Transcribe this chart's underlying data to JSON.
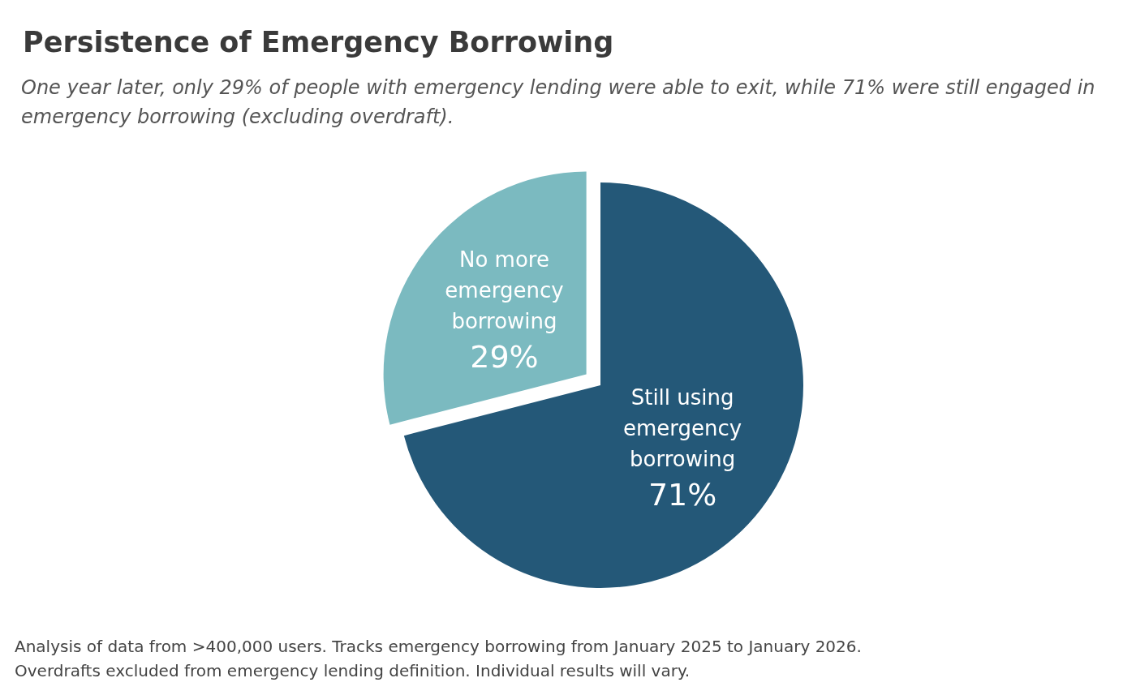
{
  "chart_data": {
    "type": "pie",
    "title": "Persistence of Emergency Borrowing",
    "subtitle": "One year later, only 29% of people with emergency lending were able to exit, while 71% were still engaged in emergency borrowing (excluding overdraft).",
    "categories": [
      "Still using emergency borrowing",
      "No more emergency borrowing"
    ],
    "values": [
      71,
      29
    ],
    "colors": [
      "#245878",
      "#7bbac0"
    ],
    "value_labels": [
      "71%",
      "29%"
    ],
    "annotations": [
      "Analysis of data from >400,000 users. Tracks emergency borrowing from January 2025 to January 2026.",
      "Overdrafts excluded from emergency lending definition. Individual results will vary."
    ]
  }
}
